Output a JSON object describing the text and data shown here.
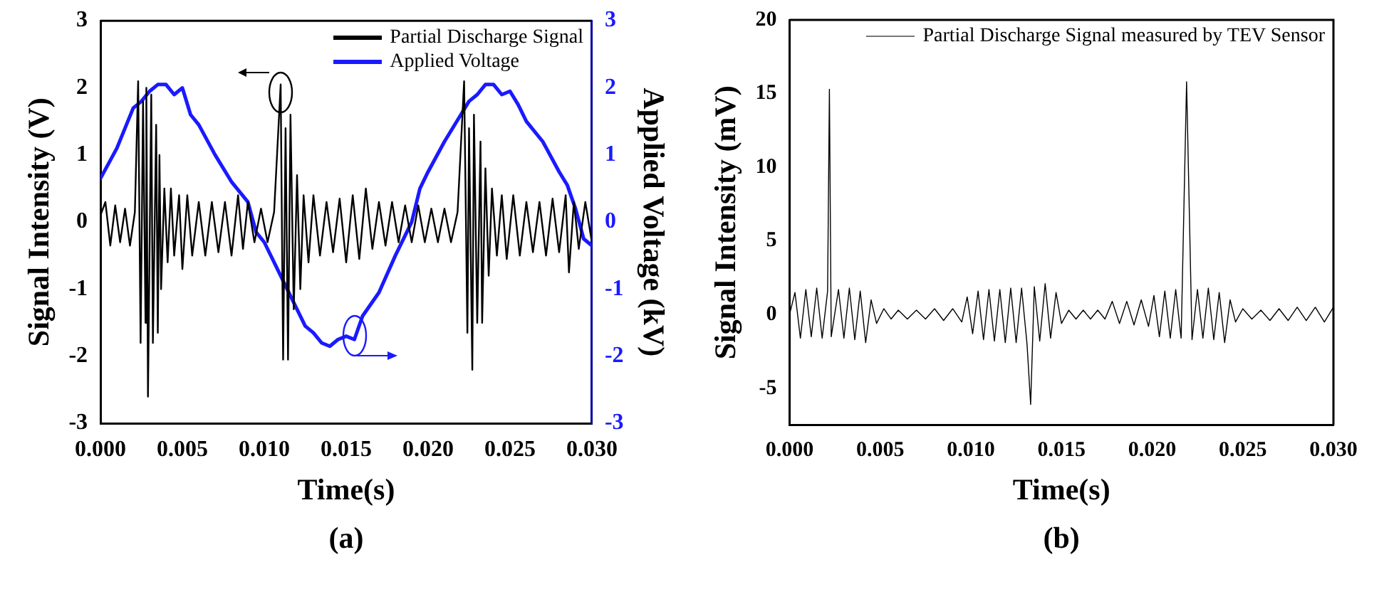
{
  "chart_data": [
    {
      "type": "line",
      "xlabel": "Time(s)",
      "ylabel": "Signal Intensity (V)",
      "y2label": "Applied Voltage (kV)",
      "xlim": [
        0,
        0.03
      ],
      "xticks": [
        {
          "value": 0,
          "label": "0.000"
        },
        {
          "value": 0.005,
          "label": "0.005"
        },
        {
          "value": 0.01,
          "label": "0.010"
        },
        {
          "value": 0.015,
          "label": "0.015"
        },
        {
          "value": 0.02,
          "label": "0.020"
        },
        {
          "value": 0.025,
          "label": "0.025"
        },
        {
          "value": 0.03,
          "label": "0.030"
        }
      ],
      "ylim": [
        -3,
        3
      ],
      "yticks": [
        -3,
        -2,
        -1,
        0,
        1,
        2,
        3
      ],
      "y2lim": [
        -3,
        3
      ],
      "y2ticks": [
        -3,
        -2,
        -1,
        0,
        1,
        2,
        3
      ],
      "legend": "top right",
      "annotations": [
        "(a)"
      ],
      "series": [
        {
          "name": "Partial Discharge Signal",
          "color": "#000000",
          "x": [
            0,
            0.0003,
            0.0006,
            0.0009,
            0.0012,
            0.0015,
            0.0018,
            0.0021,
            0.0023,
            0.00245,
            0.0026,
            0.00275,
            0.0028,
            0.0029,
            0.0031,
            0.0032,
            0.0034,
            0.0035,
            0.0036,
            0.0037,
            0.0039,
            0.0041,
            0.0043,
            0.0045,
            0.0048,
            0.005,
            0.0053,
            0.0056,
            0.006,
            0.0064,
            0.0068,
            0.0072,
            0.0076,
            0.008,
            0.0084,
            0.0087,
            0.009,
            0.0094,
            0.0098,
            0.0102,
            0.0106,
            0.011,
            0.01115,
            0.0113,
            0.01145,
            0.0116,
            0.0118,
            0.012,
            0.0122,
            0.0124,
            0.0127,
            0.013,
            0.0134,
            0.0138,
            0.0142,
            0.0146,
            0.015,
            0.0154,
            0.0158,
            0.0162,
            0.0166,
            0.017,
            0.0174,
            0.0178,
            0.0182,
            0.0186,
            0.019,
            0.0194,
            0.0198,
            0.0202,
            0.0206,
            0.021,
            0.0214,
            0.0218,
            0.0222,
            0.0224,
            0.0225,
            0.0227,
            0.0228,
            0.023,
            0.0232,
            0.0233,
            0.0235,
            0.0237,
            0.0239,
            0.0242,
            0.0245,
            0.0248,
            0.0252,
            0.0256,
            0.026,
            0.0264,
            0.0268,
            0.0272,
            0.0276,
            0.028,
            0.0284,
            0.0286,
            0.0289,
            0.0292,
            0.0296,
            0.03
          ],
          "values": [
            0.1,
            0.3,
            -0.35,
            0.25,
            -0.3,
            0.2,
            -0.35,
            0.15,
            2.1,
            -1.8,
            1.8,
            -1.5,
            2.0,
            -2.6,
            1.9,
            -1.8,
            1.45,
            -1.65,
            1.0,
            -1.0,
            0.5,
            -0.6,
            0.5,
            -0.5,
            0.4,
            -0.7,
            0.4,
            -0.5,
            0.3,
            -0.5,
            0.3,
            -0.45,
            0.3,
            -0.5,
            0.4,
            -0.4,
            0.3,
            -0.3,
            0.2,
            -0.3,
            0.15,
            2.05,
            -2.05,
            1.4,
            -2.05,
            1.6,
            -1.3,
            0.7,
            -1.0,
            0.4,
            -0.6,
            0.4,
            -0.5,
            0.3,
            -0.45,
            0.35,
            -0.6,
            0.4,
            -0.55,
            0.5,
            -0.4,
            0.3,
            -0.35,
            0.3,
            -0.3,
            0.25,
            -0.3,
            0.25,
            -0.3,
            0.2,
            -0.3,
            0.2,
            -0.3,
            0.15,
            2.1,
            -1.65,
            1.4,
            -2.2,
            1.6,
            -1.5,
            1.2,
            -1.5,
            0.8,
            -0.8,
            0.5,
            -0.5,
            0.4,
            -0.55,
            0.4,
            -0.5,
            0.3,
            -0.45,
            0.3,
            -0.5,
            0.35,
            -0.45,
            0.4,
            -0.75,
            0.3,
            -0.4,
            0.3,
            -0.3
          ]
        },
        {
          "name": "Applied Voltage",
          "color": "#1a1aff",
          "axis": "y2",
          "x": [
            0,
            0.001,
            0.002,
            0.0025,
            0.003,
            0.0035,
            0.004,
            0.0045,
            0.005,
            0.0055,
            0.006,
            0.007,
            0.008,
            0.009,
            0.0095,
            0.01,
            0.011,
            0.012,
            0.0125,
            0.013,
            0.0135,
            0.014,
            0.0145,
            0.015,
            0.0155,
            0.016,
            0.017,
            0.018,
            0.019,
            0.0195,
            0.02,
            0.021,
            0.022,
            0.0225,
            0.023,
            0.0235,
            0.024,
            0.0245,
            0.025,
            0.0255,
            0.026,
            0.027,
            0.028,
            0.0285,
            0.029,
            0.0295,
            0.03
          ],
          "values": [
            0.65,
            1.1,
            1.7,
            1.8,
            1.95,
            2.05,
            2.05,
            1.9,
            2.0,
            1.6,
            1.45,
            1.0,
            0.6,
            0.3,
            -0.15,
            -0.3,
            -0.8,
            -1.3,
            -1.55,
            -1.65,
            -1.8,
            -1.85,
            -1.75,
            -1.7,
            -1.75,
            -1.4,
            -1.05,
            -0.5,
            0.0,
            0.5,
            0.75,
            1.2,
            1.6,
            1.8,
            1.9,
            2.05,
            2.05,
            1.9,
            1.95,
            1.75,
            1.5,
            1.2,
            0.75,
            0.55,
            0.2,
            -0.25,
            -0.35
          ]
        }
      ]
    },
    {
      "type": "line",
      "xlabel": "Time(s)",
      "ylabel": "Signal Intensity (mV)",
      "xlim": [
        0,
        0.03
      ],
      "xticks": [
        {
          "value": 0,
          "label": "0.000"
        },
        {
          "value": 0.005,
          "label": "0.005"
        },
        {
          "value": 0.01,
          "label": "0.010"
        },
        {
          "value": 0.015,
          "label": "0.015"
        },
        {
          "value": 0.02,
          "label": "0.020"
        },
        {
          "value": 0.025,
          "label": "0.025"
        },
        {
          "value": 0.03,
          "label": "0.030"
        }
      ],
      "ylim": [
        -7.5,
        20
      ],
      "yticks": [
        -5,
        0,
        5,
        10,
        15,
        20
      ],
      "legend": "top right",
      "annotations": [
        "(b)"
      ],
      "series": [
        {
          "name": "Partial Discharge Signal measured by TEV Sensor",
          "color": "#000000",
          "x": [
            0,
            0.0003,
            0.0006,
            0.0009,
            0.0012,
            0.0015,
            0.0018,
            0.0021,
            0.0022,
            0.0023,
            0.0027,
            0.003,
            0.0033,
            0.0036,
            0.0039,
            0.0042,
            0.0045,
            0.0048,
            0.0052,
            0.0056,
            0.006,
            0.0065,
            0.007,
            0.0075,
            0.008,
            0.0085,
            0.009,
            0.0095,
            0.0098,
            0.0101,
            0.0104,
            0.0107,
            0.011,
            0.0113,
            0.0116,
            0.0119,
            0.0122,
            0.0125,
            0.0128,
            0.0131,
            0.0133,
            0.0135,
            0.0138,
            0.0141,
            0.0144,
            0.0147,
            0.015,
            0.0154,
            0.0158,
            0.0162,
            0.0166,
            0.017,
            0.0174,
            0.0178,
            0.0182,
            0.0186,
            0.019,
            0.0194,
            0.0198,
            0.0201,
            0.0204,
            0.0207,
            0.021,
            0.0213,
            0.0216,
            0.0219,
            0.0222,
            0.0225,
            0.0228,
            0.0231,
            0.0234,
            0.0237,
            0.024,
            0.0243,
            0.0246,
            0.025,
            0.0255,
            0.026,
            0.0265,
            0.027,
            0.0275,
            0.028,
            0.0285,
            0.029,
            0.0295,
            0.03
          ],
          "values": [
            0,
            1.5,
            -1.6,
            1.7,
            -1.5,
            1.8,
            -1.6,
            1.6,
            15.3,
            -1.5,
            1.7,
            -1.6,
            1.8,
            -1.7,
            1.6,
            -1.9,
            1.0,
            -0.6,
            0.4,
            -0.3,
            0.3,
            -0.3,
            0.3,
            -0.3,
            0.4,
            -0.4,
            0.4,
            -0.5,
            1.2,
            -1.3,
            1.6,
            -1.7,
            1.7,
            -1.8,
            1.7,
            -1.9,
            1.8,
            -1.9,
            1.8,
            -2.0,
            -6.1,
            1.9,
            -1.8,
            2.1,
            -1.6,
            1.5,
            -0.6,
            0.3,
            -0.3,
            0.3,
            -0.3,
            0.3,
            -0.3,
            0.9,
            -0.6,
            0.9,
            -0.7,
            1.0,
            -0.8,
            1.3,
            -1.5,
            1.6,
            -1.6,
            1.7,
            -1.6,
            15.8,
            -1.7,
            1.7,
            -1.6,
            1.8,
            -1.7,
            1.5,
            -1.9,
            1.0,
            -0.5,
            0.4,
            -0.3,
            0.3,
            -0.4,
            0.4,
            -0.4,
            0.5,
            -0.4,
            0.5,
            -0.5,
            0.5
          ]
        }
      ]
    }
  ]
}
